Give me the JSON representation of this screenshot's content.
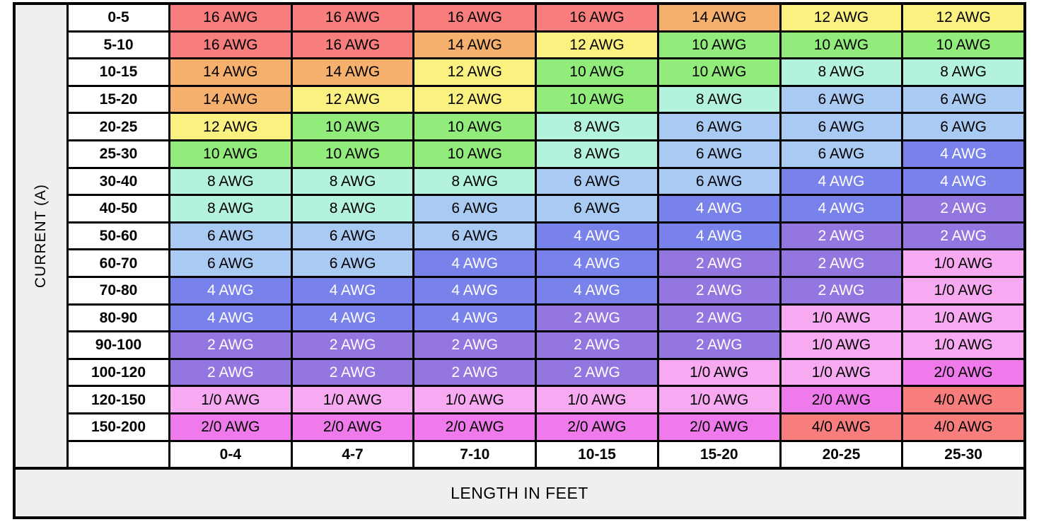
{
  "chart_data": {
    "type": "heatmap",
    "title": "",
    "ylabel": "CURRENT (A)",
    "xlabel": "LENGTH IN FEET",
    "row_labels": [
      "0-5",
      "5-10",
      "10-15",
      "15-20",
      "20-25",
      "25-30",
      "30-40",
      "40-50",
      "50-60",
      "60-70",
      "70-80",
      "80-90",
      "90-100",
      "100-120",
      "120-150",
      "150-200"
    ],
    "col_labels": [
      "0-4",
      "4-7",
      "7-10",
      "10-15",
      "15-20",
      "20-25",
      "25-30"
    ],
    "cells": [
      [
        "16 AWG",
        "16 AWG",
        "16 AWG",
        "16 AWG",
        "14 AWG",
        "12 AWG",
        "12 AWG"
      ],
      [
        "16 AWG",
        "16 AWG",
        "14 AWG",
        "12 AWG",
        "10 AWG",
        "10 AWG",
        "10 AWG"
      ],
      [
        "14 AWG",
        "14 AWG",
        "12 AWG",
        "10 AWG",
        "10 AWG",
        "8 AWG",
        "8 AWG"
      ],
      [
        "14 AWG",
        "12 AWG",
        "12 AWG",
        "10 AWG",
        "8 AWG",
        "6 AWG",
        "6 AWG"
      ],
      [
        "12 AWG",
        "10 AWG",
        "10 AWG",
        "8 AWG",
        "6 AWG",
        "6 AWG",
        "6 AWG"
      ],
      [
        "10 AWG",
        "10 AWG",
        "10 AWG",
        "8 AWG",
        "6 AWG",
        "6 AWG",
        "4 AWG"
      ],
      [
        "8 AWG",
        "8 AWG",
        "8 AWG",
        "6 AWG",
        "6 AWG",
        "4 AWG",
        "4 AWG"
      ],
      [
        "8 AWG",
        "8 AWG",
        "6 AWG",
        "6 AWG",
        "4 AWG",
        "4 AWG",
        "2 AWG"
      ],
      [
        "6 AWG",
        "6 AWG",
        "6 AWG",
        "4 AWG",
        "4 AWG",
        "2 AWG",
        "2 AWG"
      ],
      [
        "6 AWG",
        "6 AWG",
        "4 AWG",
        "4 AWG",
        "2 AWG",
        "2 AWG",
        "1/0 AWG"
      ],
      [
        "4 AWG",
        "4 AWG",
        "4 AWG",
        "4 AWG",
        "2 AWG",
        "2 AWG",
        "1/0 AWG"
      ],
      [
        "4 AWG",
        "4 AWG",
        "4 AWG",
        "2 AWG",
        "2 AWG",
        "1/0 AWG",
        "1/0 AWG"
      ],
      [
        "2 AWG",
        "2 AWG",
        "2 AWG",
        "2 AWG",
        "2 AWG",
        "1/0 AWG",
        "1/0 AWG"
      ],
      [
        "2 AWG",
        "2 AWG",
        "2 AWG",
        "2 AWG",
        "1/0 AWG",
        "1/0 AWG",
        "2/0 AWG"
      ],
      [
        "1/0 AWG",
        "1/0 AWG",
        "1/0 AWG",
        "1/0 AWG",
        "1/0 AWG",
        "2/0 AWG",
        "4/0 AWG"
      ],
      [
        "2/0 AWG",
        "2/0 AWG",
        "2/0 AWG",
        "2/0 AWG",
        "2/0 AWG",
        "4/0 AWG",
        "4/0 AWG"
      ]
    ],
    "cell_colors": {
      "16 AWG": {
        "bg": "#F87D7D",
        "text": "#000000"
      },
      "14 AWG": {
        "bg": "#F6B06E",
        "text": "#000000"
      },
      "12 AWG": {
        "bg": "#FAF180",
        "text": "#000000"
      },
      "10 AWG": {
        "bg": "#92EC7C",
        "text": "#000000"
      },
      "8 AWG": {
        "bg": "#B3F2DC",
        "text": "#000000"
      },
      "6 AWG": {
        "bg": "#A9CAF3",
        "text": "#000000"
      },
      "4 AWG": {
        "bg": "#7982EA",
        "text": "#FFFFFF"
      },
      "2 AWG": {
        "bg": "#9476E0",
        "text": "#FFFFFF"
      },
      "1/0 AWG": {
        "bg": "#F7AAF2",
        "text": "#000000"
      },
      "2/0 AWG": {
        "bg": "#EE7AEC",
        "text": "#000000"
      },
      "4/0 AWG": {
        "bg": "#F87D7D",
        "text": "#000000"
      }
    },
    "layout": {
      "grid_color": "#000000",
      "panel_gray": "#EFEFEF",
      "legend": "none",
      "grid_on": true
    }
  }
}
